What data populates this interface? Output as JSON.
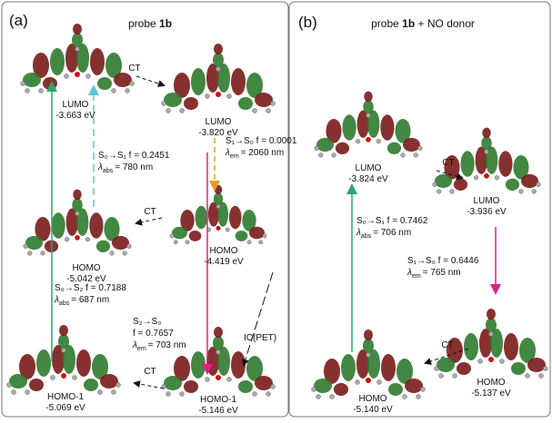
{
  "panels": [
    {
      "label": "(a)",
      "title": {
        "text": "probe",
        "bold": "1b"
      },
      "orbitals": [
        {
          "name": "LUMO",
          "energy": "-3.663 eV"
        },
        {
          "name": "LUMO",
          "energy": "-3.820 eV"
        },
        {
          "name": "HOMO",
          "energy": "-5.042 eV"
        },
        {
          "name": "HOMO",
          "energy": "-4.419 eV"
        },
        {
          "name": "HOMO-1",
          "energy": "-5.069 eV"
        },
        {
          "name": "HOMO-1",
          "energy": "-5.146 eV"
        }
      ],
      "transitions": [
        {
          "line": "S₀→S₁ f = 0.2451",
          "lambda": {
            "symbol": "λ",
            "sub": "abs",
            "text": "= 780 nm"
          }
        },
        {
          "line": "S₁→S₀ f = 0.0001",
          "lambda": {
            "symbol": "λ",
            "sub": "em",
            "text": "= 2060 nm"
          }
        },
        {
          "line": "S₀→S₂ f = 0.7188",
          "lambda": {
            "symbol": "λ",
            "sub": "abs",
            "text": "= 687 nm"
          }
        },
        {
          "line": "S₂→S₀",
          "line2": "f = 0.7657",
          "lambda": {
            "symbol": "λ",
            "sub": "em",
            "text": "= 703 nm"
          }
        }
      ],
      "ct_labels": [
        "CT",
        "CT",
        "CT"
      ],
      "ic_label": "IC(PET)"
    },
    {
      "label": "(b)",
      "title": {
        "text": "probe",
        "bold": "1b",
        "suffix": "+ NO donor"
      },
      "orbitals": [
        {
          "name": "LUMO",
          "energy": "-3.824 eV"
        },
        {
          "name": "LUMO",
          "energy": "-3.936 eV"
        },
        {
          "name": "HOMO",
          "energy": "-5.140 eV"
        },
        {
          "name": "HOMO",
          "energy": "-5.137 eV"
        }
      ],
      "transitions": [
        {
          "line": "S₀→S₁ f = 0.7462",
          "lambda": {
            "symbol": "λ",
            "sub": "abs",
            "text": "= 706 nm"
          }
        },
        {
          "line": "S₁→S₀ f = 0.6446",
          "lambda": {
            "symbol": "λ",
            "sub": "em",
            "text": "= 765 nm"
          }
        }
      ],
      "ct_labels": [
        "CT",
        "CT"
      ]
    }
  ]
}
